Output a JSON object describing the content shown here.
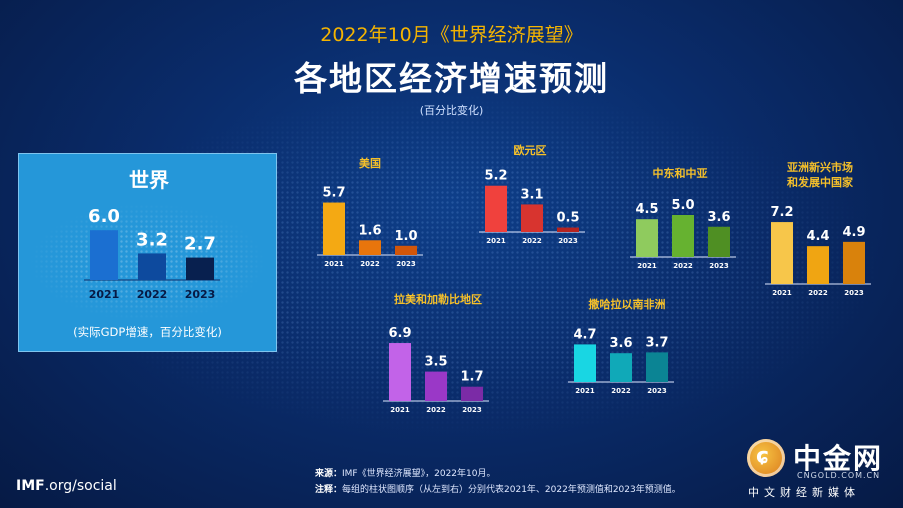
{
  "header": {
    "top": "2022年10月《世界经济展望》",
    "title": "各地区经济增速预测",
    "subtitle": "(百分比变化)"
  },
  "world": {
    "title": "世界",
    "note": "(实际GDP增速，百分比变化)"
  },
  "footer": {
    "source_label": "来源：",
    "source_text": "IMF《世界经济展望》，2022年10月。",
    "note_label": "注释：",
    "note_text": "每组的柱状图顺序（从左到右）分别代表2021年、2022年预测值和2023年预测值。",
    "imf_bold": "IMF",
    "imf_rest": ".org/social"
  },
  "logo": {
    "name": "中金网",
    "url": "CNGOLD.COM.CN",
    "tag": "中文财经新媒体"
  },
  "chart_data": [
    {
      "type": "bar",
      "id": "world",
      "title": "世界",
      "categories": [
        "2021",
        "2022",
        "2023"
      ],
      "values": [
        6.0,
        3.2,
        2.7
      ],
      "colors": [
        "#1b6fd1",
        "#0d4a9e",
        "#08204f"
      ],
      "ylim": [
        0,
        7.5
      ]
    },
    {
      "type": "bar",
      "id": "us",
      "title": "美国",
      "categories": [
        "2021",
        "2022",
        "2023"
      ],
      "values": [
        5.7,
        1.6,
        1.0
      ],
      "colors": [
        "#f4a913",
        "#e8750c",
        "#d2560a"
      ],
      "ylim": [
        0,
        7.5
      ]
    },
    {
      "type": "bar",
      "id": "euro",
      "title": "欧元区",
      "categories": [
        "2021",
        "2022",
        "2023"
      ],
      "values": [
        5.2,
        3.1,
        0.5
      ],
      "colors": [
        "#f0413d",
        "#d8342f",
        "#b5231f"
      ],
      "ylim": [
        0,
        7.5
      ]
    },
    {
      "type": "bar",
      "id": "mideast",
      "title": "中东和中亚",
      "categories": [
        "2021",
        "2022",
        "2023"
      ],
      "values": [
        4.5,
        5.0,
        3.6
      ],
      "colors": [
        "#8fcb5e",
        "#66b230",
        "#4f8f23"
      ],
      "ylim": [
        0,
        7.5
      ]
    },
    {
      "type": "bar",
      "id": "asia",
      "title": "亚洲新兴市场和发展中国家",
      "title_lines": [
        "亚洲新兴市场",
        "和发展中国家"
      ],
      "categories": [
        "2021",
        "2022",
        "2023"
      ],
      "values": [
        7.2,
        4.4,
        4.9
      ],
      "colors": [
        "#f7c64a",
        "#f0a512",
        "#d9820c"
      ],
      "ylim": [
        0,
        7.5
      ]
    },
    {
      "type": "bar",
      "id": "latam",
      "title": "拉美和加勒比地区",
      "categories": [
        "2021",
        "2022",
        "2023"
      ],
      "values": [
        6.9,
        3.5,
        1.7
      ],
      "colors": [
        "#c263e8",
        "#9a38c7",
        "#7b2ba6"
      ],
      "ylim": [
        0,
        7.5
      ]
    },
    {
      "type": "bar",
      "id": "ssa",
      "title": "撒哈拉以南非洲",
      "categories": [
        "2021",
        "2022",
        "2023"
      ],
      "values": [
        4.7,
        3.6,
        3.7
      ],
      "colors": [
        "#19d6e3",
        "#10a9b8",
        "#0b8494"
      ],
      "ylim": [
        0,
        7.5
      ]
    }
  ]
}
